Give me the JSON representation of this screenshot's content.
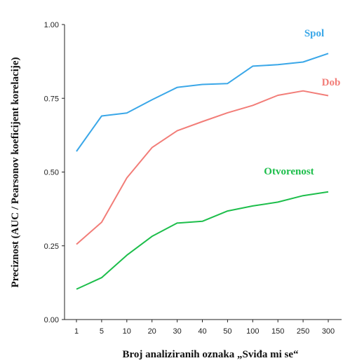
{
  "chart_data": {
    "type": "line",
    "title": "",
    "xlabel": "Broj analiziranih oznaka „Sviđa mi se“",
    "ylabel": "Preciznost (AUC / Pearsonov koeficijent korelacije)",
    "categories": [
      "1",
      "5",
      "10",
      "20",
      "30",
      "40",
      "50",
      "100",
      "150",
      "250",
      "300"
    ],
    "ylim": [
      0,
      1
    ],
    "yticks": [
      "0.00",
      "0.25",
      "0.50",
      "0.75",
      "1.00"
    ],
    "grid": false,
    "legend": "inline-labels",
    "series": [
      {
        "name": "Spol",
        "color": "#3aa7e8",
        "values": [
          0.57,
          0.69,
          0.7,
          0.745,
          0.787,
          0.797,
          0.8,
          0.859,
          0.864,
          0.873,
          0.902
        ]
      },
      {
        "name": "Dob",
        "color": "#f27d78",
        "values": [
          0.255,
          0.33,
          0.48,
          0.583,
          0.64,
          0.671,
          0.701,
          0.726,
          0.76,
          0.775,
          0.759
        ]
      },
      {
        "name": "Otvorenost",
        "color": "#1dbe4b",
        "values": [
          0.103,
          0.142,
          0.218,
          0.282,
          0.327,
          0.333,
          0.368,
          0.385,
          0.398,
          0.42,
          0.433
        ]
      }
    ]
  }
}
